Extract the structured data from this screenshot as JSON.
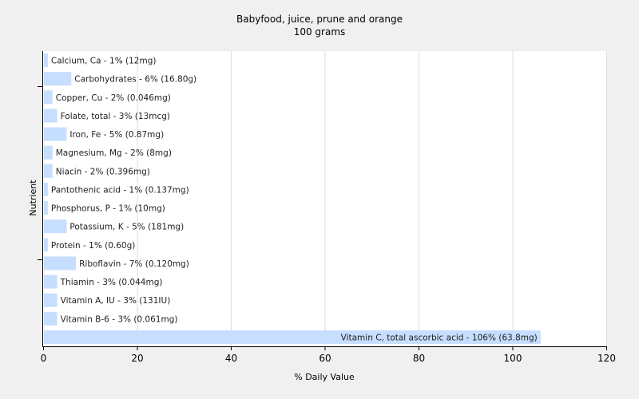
{
  "chart_data": {
    "type": "bar",
    "orientation": "horizontal",
    "title": "Babyfood, juice, prune and orange",
    "subtitle": "100 grams",
    "xlabel": "% Daily Value",
    "ylabel": "Nutrient",
    "xlim": [
      0,
      120
    ],
    "xticks": [
      0,
      20,
      40,
      60,
      80,
      100,
      120
    ],
    "grid": true,
    "bar_color": "#c6deff",
    "categories": [
      "Calcium, Ca",
      "Carbohydrates",
      "Copper, Cu",
      "Folate, total",
      "Iron, Fe",
      "Magnesium, Mg",
      "Niacin",
      "Pantothenic acid",
      "Phosphorus, P",
      "Potassium, K",
      "Protein",
      "Riboflavin",
      "Thiamin",
      "Vitamin A, IU",
      "Vitamin B-6",
      "Vitamin C, total ascorbic acid"
    ],
    "values": [
      1,
      6,
      2,
      3,
      5,
      2,
      2,
      1,
      1,
      5,
      1,
      7,
      3,
      3,
      3,
      106
    ],
    "labels": [
      "Calcium, Ca - 1% (12mg)",
      "Carbohydrates - 6% (16.80g)",
      "Copper, Cu - 2% (0.046mg)",
      "Folate, total - 3% (13mcg)",
      "Iron, Fe - 5% (0.87mg)",
      "Magnesium, Mg - 2% (8mg)",
      "Niacin - 2% (0.396mg)",
      "Pantothenic acid - 1% (0.137mg)",
      "Phosphorus, P - 1% (10mg)",
      "Potassium, K - 5% (181mg)",
      "Protein - 1% (0.60g)",
      "Riboflavin - 7% (0.120mg)",
      "Thiamin - 3% (0.044mg)",
      "Vitamin A, IU - 3% (131IU)",
      "Vitamin B-6 - 3% (0.061mg)",
      "Vitamin C, total ascorbic acid - 106% (63.8mg)"
    ]
  }
}
